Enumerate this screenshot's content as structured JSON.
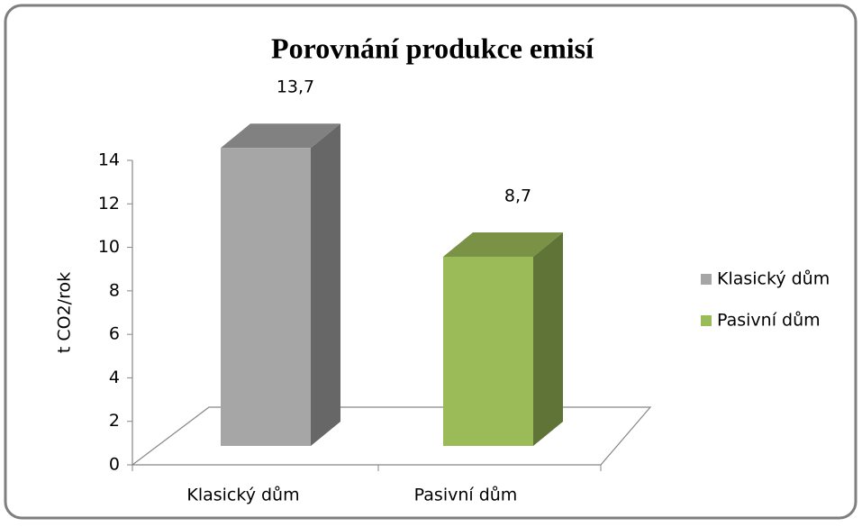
{
  "chart_data": {
    "type": "bar3d",
    "title": "Porovnání produkce emisí",
    "ylabel": "t CO2/rok",
    "categories": [
      "Klasický dům",
      "Pasivní dům"
    ],
    "series": [
      {
        "name": "Klasický dům",
        "color": "#a6a6a6",
        "values": [
          13.7,
          null
        ],
        "value_labels": [
          "13,7",
          null
        ]
      },
      {
        "name": "Pasivní dům",
        "color": "#9bbb59",
        "values": [
          null,
          8.7
        ],
        "value_labels": [
          null,
          "8,7"
        ]
      }
    ],
    "ylim": [
      0,
      14
    ],
    "yticks": [
      0,
      2,
      4,
      6,
      8,
      10,
      12,
      14
    ],
    "legend": "right"
  }
}
